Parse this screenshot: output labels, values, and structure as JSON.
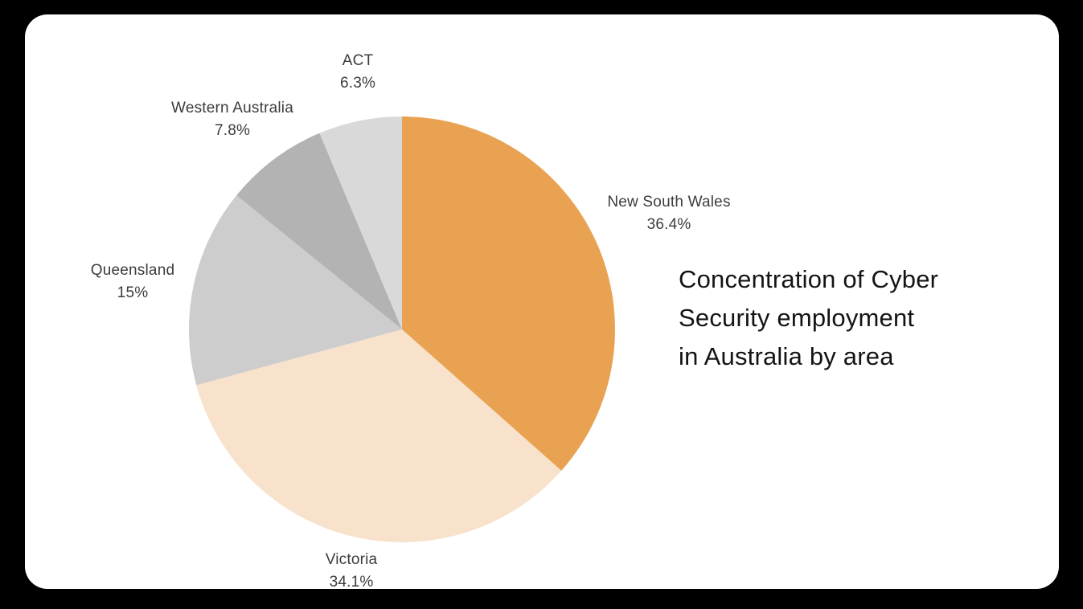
{
  "page": {
    "background_color": "#000000",
    "card_color": "#ffffff"
  },
  "chart_data": {
    "type": "pie",
    "title": "Concentration of Cyber Security employment in Australia by area",
    "title_lines": [
      "Concentration of Cyber",
      "Security employment",
      "in Australia by area"
    ],
    "legend": "none",
    "start_angle_deg": 0,
    "direction": "clockwise",
    "slices": [
      {
        "label": "New South Wales",
        "value": 36.4,
        "display": "36.4%",
        "color": "#E9A251"
      },
      {
        "label": "Victoria",
        "value": 34.1,
        "display": "34.1%",
        "color": "#F9E2CB"
      },
      {
        "label": "Queensland",
        "value": 15.0,
        "display": "15%",
        "color": "#CDCDCD"
      },
      {
        "label": "Western Australia",
        "value": 7.8,
        "display": "7.8%",
        "color": "#B3B3B3"
      },
      {
        "label": "ACT",
        "value": 6.3,
        "display": "6.3%",
        "color": "#D9D9D9"
      }
    ],
    "text_colors": {
      "title": "#141414",
      "labels": "#3c3c3c"
    }
  }
}
